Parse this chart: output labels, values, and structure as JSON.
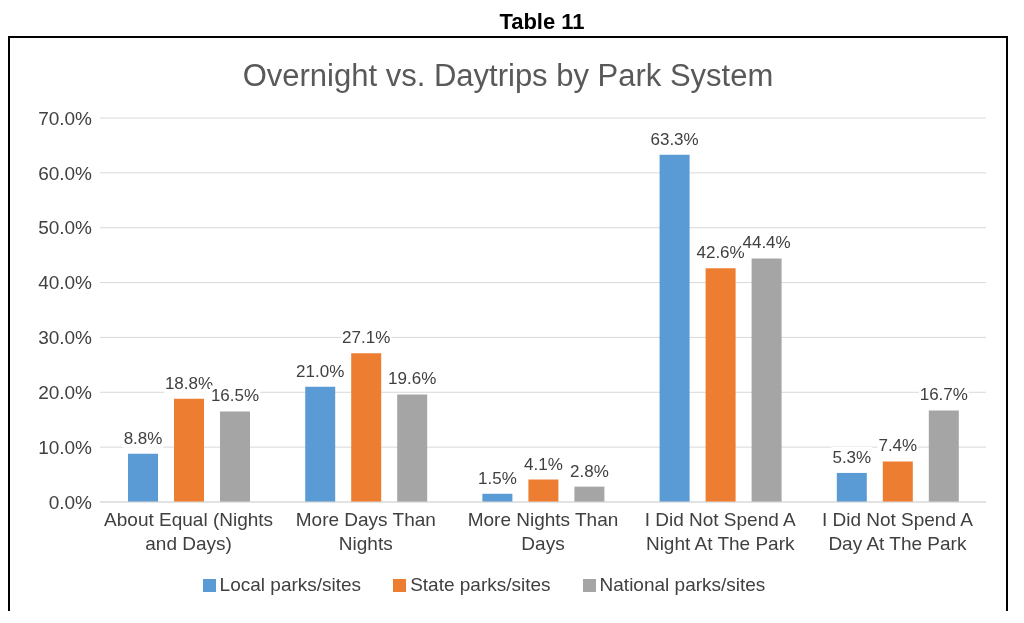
{
  "chart_data": {
    "type": "bar",
    "title": "Overnight vs. Daytrips by Park System",
    "annotations": [
      "Table 11"
    ],
    "categories": [
      "About Equal (Nights and Days)",
      "More Days Than Nights",
      "More Nights Than Days",
      "I Did Not Spend A Night At The Park",
      "I Did Not Spend A Day At The Park"
    ],
    "series": [
      {
        "name": "Local parks/sites",
        "color": "#5b9bd5",
        "values": [
          8.8,
          21.0,
          1.5,
          63.3,
          5.3
        ],
        "value_labels": [
          "8.8%",
          "21.0%",
          "1.5%",
          "63.3%",
          "5.3%"
        ]
      },
      {
        "name": "State parks/sites",
        "color": "#ed7d31",
        "values": [
          18.8,
          27.1,
          4.1,
          42.6,
          7.4
        ],
        "value_labels": [
          "18.8%",
          "27.1%",
          "4.1%",
          "42.6%",
          "7.4%"
        ]
      },
      {
        "name": "National parks/sites",
        "color": "#a5a5a5",
        "values": [
          16.5,
          19.6,
          2.8,
          44.4,
          16.7
        ],
        "value_labels": [
          "16.5%",
          "19.6%",
          "2.8%",
          "44.4%",
          "16.7%"
        ]
      }
    ],
    "ylim": [
      0,
      70
    ],
    "yticks": [
      {
        "value": 0,
        "label": "0.0%"
      },
      {
        "value": 10,
        "label": "10.0%"
      },
      {
        "value": 20,
        "label": "20.0%"
      },
      {
        "value": 30,
        "label": "30.0%"
      },
      {
        "value": 40,
        "label": "40.0%"
      },
      {
        "value": 50,
        "label": "50.0%"
      },
      {
        "value": 60,
        "label": "60.0%"
      },
      {
        "value": 70,
        "label": "70.0%"
      }
    ],
    "grid": "y",
    "legend": "bottom"
  }
}
